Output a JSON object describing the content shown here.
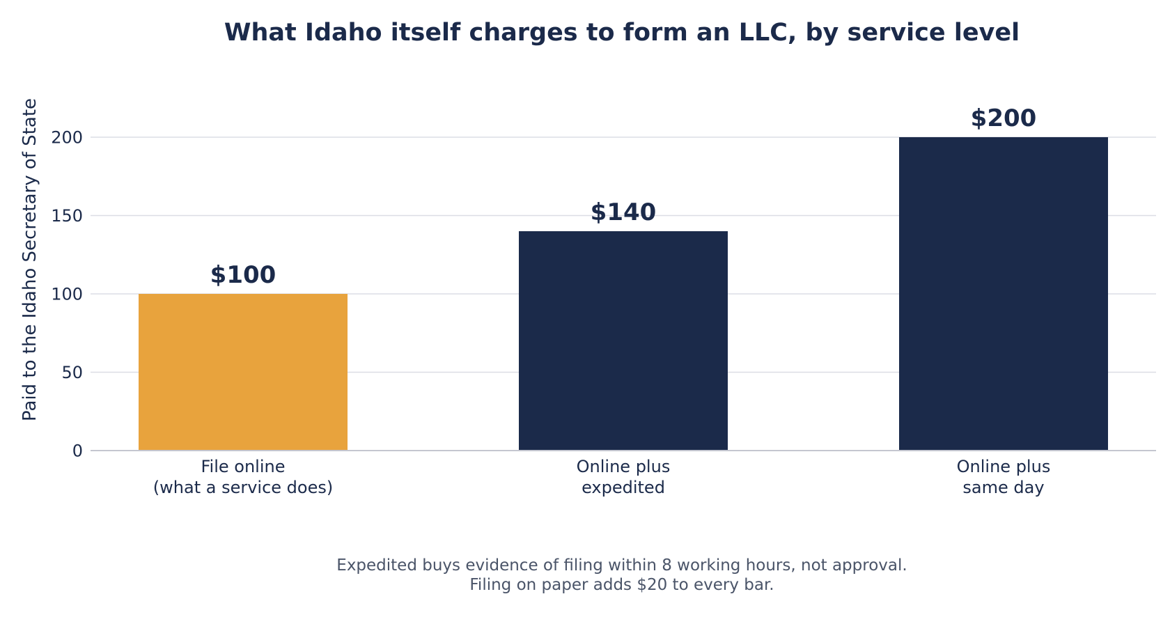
{
  "chart_data": {
    "type": "bar",
    "title": "What Idaho itself charges to form an LLC, by service level",
    "xlabel": "",
    "ylabel": "Paid to the Idaho Secretary of State",
    "categories": [
      [
        "File online",
        "(what a service does)"
      ],
      [
        "Online plus",
        "expedited"
      ],
      [
        "Online plus",
        "same day"
      ]
    ],
    "values": [
      100,
      140,
      200
    ],
    "value_labels": [
      "$100",
      "$140",
      "$200"
    ],
    "ylim": [
      0,
      230
    ],
    "yticks": [
      0,
      50,
      100,
      150,
      200
    ],
    "grid": true,
    "bar_colors": [
      "#e8a33d",
      "#1b2a4a",
      "#1b2a4a"
    ],
    "footnote": [
      "Expedited buys evidence of filing within 8 working hours, not approval.",
      "Filing on paper adds $20 to every bar."
    ]
  },
  "colors": {
    "text": "#1b2a4a",
    "note": "#4a5468",
    "grid": "#dcdde5",
    "axis": "#c4c6d0"
  }
}
